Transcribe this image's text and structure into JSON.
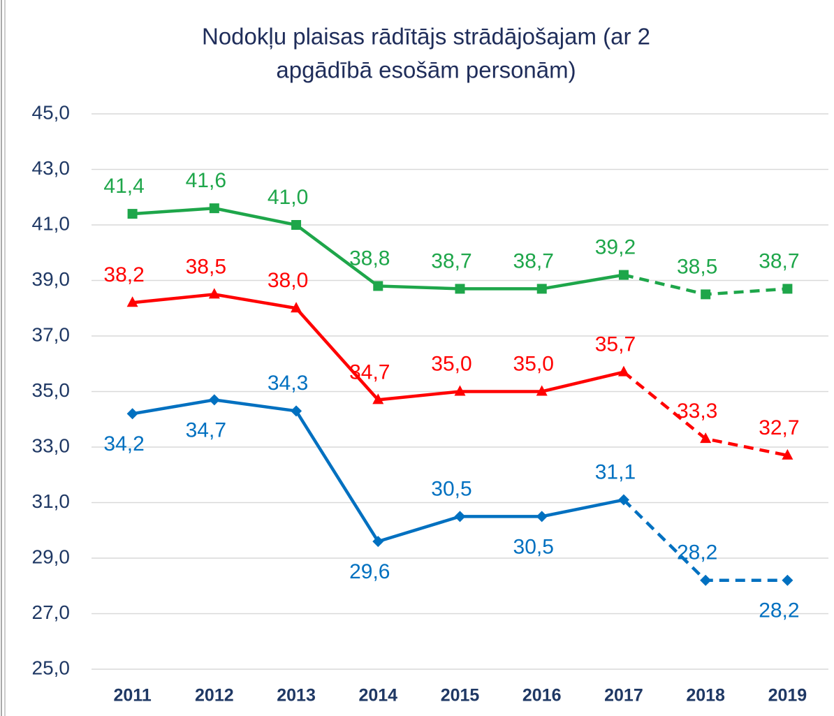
{
  "chart_data": {
    "type": "line",
    "title": [
      "Nodokļu plaisas rādītājs strādājošajam (ar 2",
      "apgādībā esošām personām)"
    ],
    "categories": [
      "2011",
      "2012",
      "2013",
      "2014",
      "2015",
      "2016",
      "2017",
      "2018",
      "2019"
    ],
    "dashed_from": "2017",
    "ylim": [
      25,
      45
    ],
    "yticks": [
      {
        "value": 25,
        "label": "25,0"
      },
      {
        "value": 27,
        "label": "27,0"
      },
      {
        "value": 29,
        "label": "29,0"
      },
      {
        "value": 31,
        "label": "31,0"
      },
      {
        "value": 33,
        "label": "33,0"
      },
      {
        "value": 35,
        "label": "35,0"
      },
      {
        "value": 37,
        "label": "37,0"
      },
      {
        "value": 39,
        "label": "39,0"
      },
      {
        "value": 41,
        "label": "41,0"
      },
      {
        "value": 43,
        "label": "43,0"
      },
      {
        "value": 45,
        "label": "45,0"
      }
    ],
    "grid": true,
    "series": [
      {
        "color": "#1ea64a",
        "marker": "square",
        "values": [
          41.4,
          41.6,
          41.0,
          38.8,
          38.7,
          38.7,
          39.2,
          38.5,
          38.7
        ],
        "value_labels": [
          "41,4",
          "41,6",
          "41,0",
          "38,8",
          "38,7",
          "38,7",
          "39,2",
          "38,5",
          "38,7"
        ],
        "label_positions": [
          "above",
          "above",
          "above",
          "above",
          "above",
          "above",
          "above",
          "above",
          "above"
        ]
      },
      {
        "color": "#ff0000",
        "marker": "triangle",
        "values": [
          38.2,
          38.5,
          38.0,
          34.7,
          35.0,
          35.0,
          35.7,
          33.3,
          32.7
        ],
        "value_labels": [
          "38,2",
          "38,5",
          "38,0",
          "34,7",
          "35,0",
          "35,0",
          "35,7",
          "33,3",
          "32,7"
        ],
        "label_positions": [
          "above",
          "above",
          "above",
          "above",
          "above",
          "above",
          "above",
          "above",
          "above"
        ]
      },
      {
        "color": "#0070c0",
        "marker": "diamond",
        "values": [
          34.2,
          34.7,
          34.3,
          29.6,
          30.5,
          30.5,
          31.1,
          28.2,
          28.2
        ],
        "value_labels": [
          "34,2",
          "34,7",
          "34,3",
          "29,6",
          "30,5",
          "30,5",
          "31,1",
          "28,2",
          "28,2"
        ],
        "label_positions": [
          "below",
          "below",
          "above",
          "below",
          "above",
          "below",
          "above",
          "above",
          "below"
        ]
      }
    ]
  }
}
